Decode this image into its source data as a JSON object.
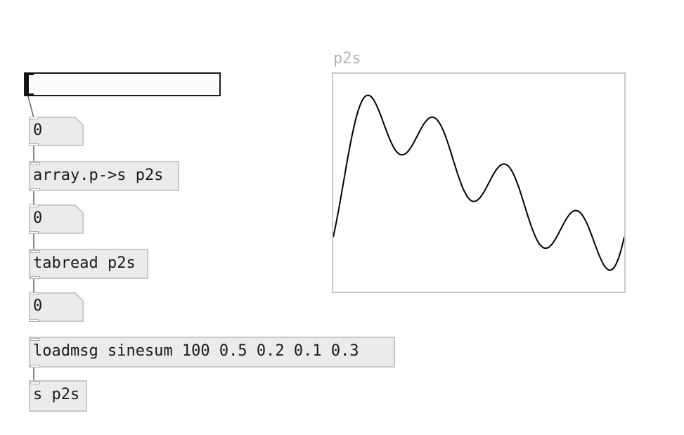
{
  "slider": {
    "value": 0
  },
  "objects": {
    "num1": "0",
    "array_obj": "array.p->s p2s",
    "num2": "0",
    "tabread_obj": "tabread p2s",
    "num3": "0",
    "loadmsg_obj": "loadmsg sinesum 100 0.5 0.2 0.1 0.3",
    "send_obj": "s p2s"
  },
  "graph": {
    "title": "p2s",
    "harmonics": [
      0.5,
      0.2,
      0.1,
      0.3
    ]
  }
}
